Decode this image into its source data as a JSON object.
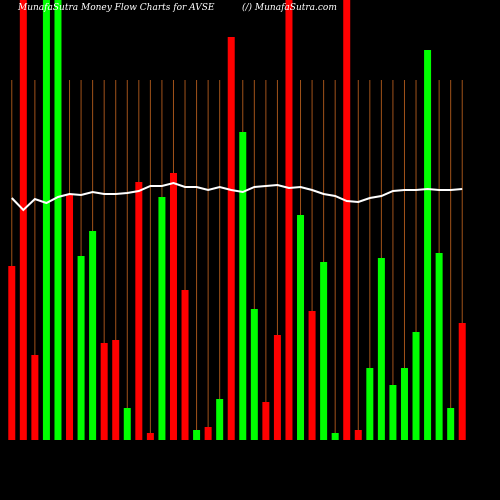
{
  "chart_data": {
    "type": "bar",
    "title": "MunafaSutra  Money Flow  Charts for AVSE",
    "subtitle": "(/) MunafaSutra.com",
    "values": [
      174,
      440,
      85,
      440,
      440,
      245,
      184,
      209,
      97,
      100,
      32,
      258,
      7,
      243,
      267,
      150,
      10,
      13,
      41,
      403,
      308,
      131,
      38,
      105,
      440,
      225,
      129,
      178,
      7,
      440,
      10,
      72,
      182,
      55,
      72,
      108,
      390,
      187,
      32,
      117
    ],
    "colors": [
      "#ff0000",
      "#ff0000",
      "#ff0000",
      "#00ff00",
      "#00ff00",
      "#ff0000",
      "#00ff00",
      "#00ff00",
      "#ff0000",
      "#ff0000",
      "#00ff00",
      "#ff0000",
      "#ff0000",
      "#00ff00",
      "#ff0000",
      "#ff0000",
      "#00ff00",
      "#ff0000",
      "#00ff00",
      "#ff0000",
      "#00ff00",
      "#00ff00",
      "#ff0000",
      "#ff0000",
      "#ff0000",
      "#00ff00",
      "#ff0000",
      "#00ff00",
      "#00ff00",
      "#ff0000",
      "#ff0000",
      "#00ff00",
      "#00ff00",
      "#00ff00",
      "#00ff00",
      "#00ff00",
      "#00ff00",
      "#00ff00",
      "#00ff00",
      "#ff0000"
    ],
    "line": {
      "color": "#ffffff",
      "values": [
        242,
        230,
        241,
        237,
        243,
        246,
        245,
        248,
        246,
        246,
        247,
        249,
        254,
        254,
        257,
        253,
        253,
        250,
        253,
        250,
        248,
        253,
        254,
        255,
        252,
        253,
        250,
        246,
        244,
        239,
        238,
        242,
        244,
        249,
        250,
        250,
        251,
        250,
        250,
        251
      ]
    },
    "ylim": [
      0,
      440
    ],
    "grid": true,
    "grid_color": "#a0521a"
  }
}
